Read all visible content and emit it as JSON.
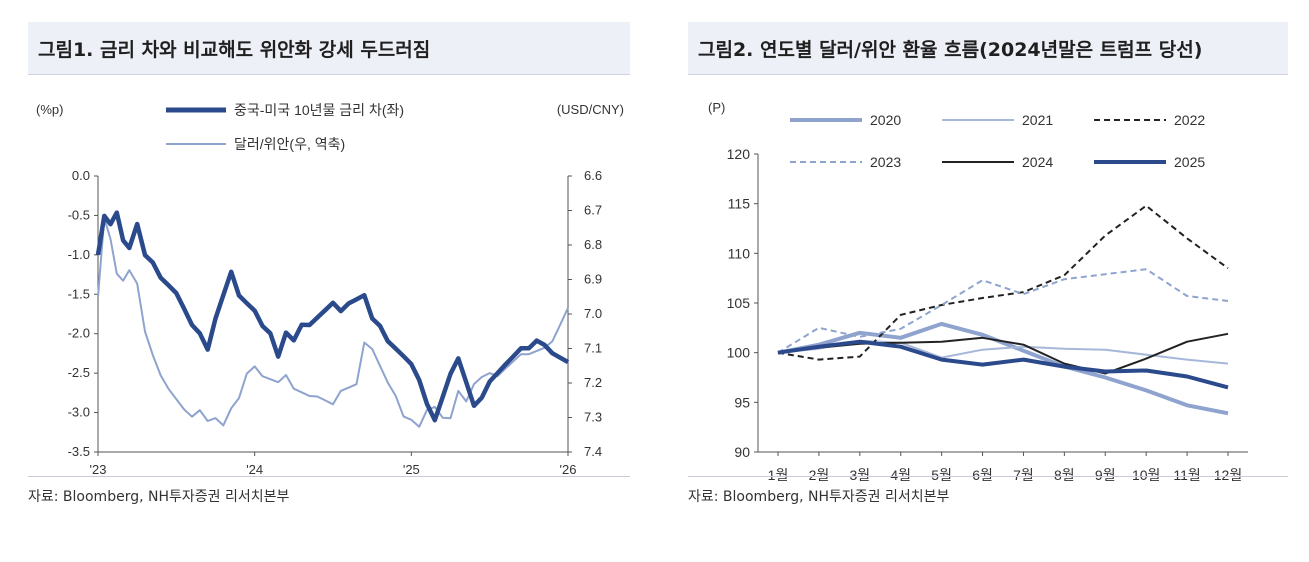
{
  "panels": [
    {
      "title": "그림1. 금리 차와 비교해도 위안화 강세 두드러짐",
      "source": "자료: Bloomberg, NH투자증권 리서치본부"
    },
    {
      "title": "그림2. 연도별 달러/위안 환율 흐름(2024년말은 트럼프 당선)",
      "source": "자료: Bloomberg, NH투자증권 리서치본부"
    }
  ],
  "chart_data": [
    {
      "type": "line",
      "title": "그림1. 금리 차와 비교해도 위안화 강세 두드러짐",
      "ylabel_left": "(%p)",
      "ylabel_right": "(USD/CNY)",
      "ylim_left": [
        -3.5,
        0.0
      ],
      "ylim_right": [
        7.4,
        6.6
      ],
      "yticks_left": [
        "0.0",
        "-0.5",
        "-1.0",
        "-1.5",
        "-2.0",
        "-2.5",
        "-3.0",
        "-3.5"
      ],
      "yticks_right": [
        "6.6",
        "6.7",
        "6.8",
        "6.9",
        "7.0",
        "7.1",
        "7.2",
        "7.3",
        "7.4"
      ],
      "xticks": [
        "'23",
        "'24",
        "'25",
        "'26"
      ],
      "xlim": [
        2023.0,
        2026.0
      ],
      "series": [
        {
          "name": "중국-미국 10년물 금리 차(좌)",
          "axis": "left",
          "color": "#2b4a8c",
          "x": [
            2023.0,
            2023.04,
            2023.08,
            2023.12,
            2023.16,
            2023.2,
            2023.25,
            2023.3,
            2023.35,
            2023.4,
            2023.45,
            2023.5,
            2023.55,
            2023.6,
            2023.65,
            2023.7,
            2023.75,
            2023.8,
            2023.85,
            2023.9,
            2023.95,
            2024.0,
            2024.05,
            2024.1,
            2024.15,
            2024.2,
            2024.25,
            2024.3,
            2024.35,
            2024.4,
            2024.45,
            2024.5,
            2024.55,
            2024.6,
            2024.65,
            2024.7,
            2024.75,
            2024.8,
            2024.85,
            2024.9,
            2024.95,
            2025.0,
            2025.05,
            2025.1,
            2025.15,
            2025.2,
            2025.25,
            2025.3,
            2025.35,
            2025.4,
            2025.45,
            2025.5,
            2025.55,
            2025.6,
            2025.65,
            2025.7,
            2025.75,
            2025.8,
            2025.85,
            2025.9,
            2025.95,
            2026.0
          ],
          "y": [
            -1.0,
            -0.5,
            -0.6,
            -0.45,
            -0.8,
            -0.9,
            -0.6,
            -1.0,
            -1.1,
            -1.3,
            -1.4,
            -1.5,
            -1.7,
            -1.9,
            -2.0,
            -2.2,
            -1.8,
            -1.5,
            -1.2,
            -1.5,
            -1.6,
            -1.7,
            -1.9,
            -2.0,
            -2.3,
            -2.0,
            -2.1,
            -1.9,
            -1.9,
            -1.8,
            -1.7,
            -1.6,
            -1.7,
            -1.6,
            -1.55,
            -1.5,
            -1.8,
            -1.9,
            -2.1,
            -2.2,
            -2.3,
            -2.4,
            -2.6,
            -2.9,
            -3.1,
            -2.8,
            -2.5,
            -2.3,
            -2.6,
            -2.9,
            -2.8,
            -2.6,
            -2.5,
            -2.4,
            -2.3,
            -2.2,
            -2.2,
            -2.1,
            -2.15,
            -2.25,
            -2.3,
            -2.35
          ]
        },
        {
          "name": "달러/위안(우, 역축)",
          "axis": "right",
          "color": "#8fa3cf",
          "x": [
            2023.0,
            2023.04,
            2023.08,
            2023.12,
            2023.16,
            2023.2,
            2023.25,
            2023.3,
            2023.35,
            2023.4,
            2023.45,
            2023.5,
            2023.55,
            2023.6,
            2023.65,
            2023.7,
            2023.75,
            2023.8,
            2023.85,
            2023.9,
            2023.95,
            2024.0,
            2024.05,
            2024.1,
            2024.15,
            2024.2,
            2024.25,
            2024.3,
            2024.35,
            2024.4,
            2024.45,
            2024.5,
            2024.55,
            2024.6,
            2024.65,
            2024.7,
            2024.75,
            2024.8,
            2024.85,
            2024.9,
            2024.95,
            2025.0,
            2025.05,
            2025.1,
            2025.15,
            2025.2,
            2025.25,
            2025.3,
            2025.35,
            2025.4,
            2025.45,
            2025.5,
            2025.55,
            2025.6,
            2025.65,
            2025.7,
            2025.75,
            2025.8,
            2025.85,
            2025.9,
            2025.95,
            2026.0
          ],
          "y": [
            6.95,
            6.72,
            6.78,
            6.88,
            6.9,
            6.87,
            6.91,
            7.05,
            7.12,
            7.18,
            7.22,
            7.25,
            7.28,
            7.3,
            7.28,
            7.31,
            7.3,
            7.32,
            7.27,
            7.24,
            7.17,
            7.15,
            7.18,
            7.19,
            7.2,
            7.18,
            7.22,
            7.23,
            7.24,
            7.24,
            7.25,
            7.26,
            7.22,
            7.21,
            7.2,
            7.08,
            7.1,
            7.15,
            7.2,
            7.24,
            7.3,
            7.31,
            7.33,
            7.28,
            7.27,
            7.3,
            7.3,
            7.22,
            7.25,
            7.2,
            7.18,
            7.17,
            7.18,
            7.16,
            7.14,
            7.12,
            7.12,
            7.11,
            7.1,
            7.08,
            7.03,
            6.98
          ]
        }
      ]
    },
    {
      "type": "line",
      "title": "그림2. 연도별 달러/위안 환율 흐름(2024년말은 트럼프 당선)",
      "ylabel": "(P)",
      "ylim": [
        90,
        120
      ],
      "yticks": [
        "120",
        "115",
        "110",
        "105",
        "100",
        "95",
        "90"
      ],
      "categories": [
        "1월",
        "2월",
        "3월",
        "4월",
        "5월",
        "6월",
        "7월",
        "8월",
        "9월",
        "10월",
        "11월",
        "12월"
      ],
      "series": [
        {
          "name": "2020",
          "color": "#8fa3cf",
          "dash": "solid",
          "width": 4,
          "values": [
            100.0,
            100.8,
            102.0,
            101.5,
            102.9,
            101.8,
            100.2,
            98.6,
            97.5,
            96.2,
            94.7,
            93.9
          ]
        },
        {
          "name": "2021",
          "color": "#a7b7da",
          "dash": "solid",
          "width": 2,
          "values": [
            100.0,
            100.4,
            101.2,
            101.0,
            99.5,
            100.3,
            100.6,
            100.4,
            100.3,
            99.8,
            99.3,
            98.9
          ]
        },
        {
          "name": "2022",
          "color": "#222222",
          "dash": "dashed",
          "width": 2,
          "values": [
            100.0,
            99.3,
            99.6,
            103.8,
            104.8,
            105.5,
            106.1,
            107.8,
            111.8,
            114.8,
            111.5,
            108.5
          ]
        },
        {
          "name": "2023",
          "color": "#8fa3cf",
          "dash": "dashed",
          "width": 2,
          "values": [
            100.0,
            102.5,
            101.6,
            102.4,
            104.8,
            107.3,
            105.9,
            107.4,
            107.9,
            108.4,
            105.7,
            105.2
          ]
        },
        {
          "name": "2024",
          "color": "#222222",
          "dash": "solid",
          "width": 2,
          "values": [
            100.0,
            100.5,
            100.9,
            101.0,
            101.1,
            101.5,
            100.8,
            98.9,
            97.9,
            99.4,
            101.1,
            101.9
          ]
        },
        {
          "name": "2025",
          "color": "#2b4a8c",
          "dash": "solid",
          "width": 4,
          "values": [
            100.0,
            100.6,
            101.1,
            100.6,
            99.3,
            98.8,
            99.3,
            98.6,
            98.1,
            98.2,
            97.6,
            96.5
          ]
        }
      ]
    }
  ]
}
